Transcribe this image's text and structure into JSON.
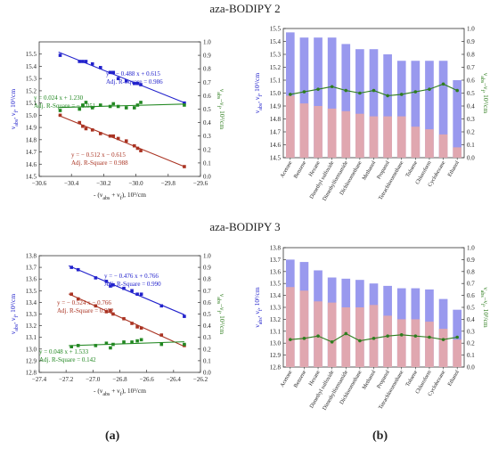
{
  "titles": [
    "aza-BODIPY 2",
    "aza-BODIPY 3"
  ],
  "panel_labels": [
    "(a)",
    "(b)"
  ],
  "chart_data": [
    {
      "id": "a2",
      "type": "scatter",
      "xlabel": "- (ν_abs + ν_f), 10³/cm",
      "ylabel": "ν_abs, ν_f, 10³/cm",
      "y2label": "ν_abs–ν_f, 10³/cm",
      "xlim": [
        -30.6,
        -29.6
      ],
      "xticks": [
        -30.6,
        -30.4,
        -30.2,
        -30.0,
        -29.8,
        -29.6
      ],
      "ylim": [
        14.5,
        15.6
      ],
      "yticks": [
        14.5,
        14.6,
        14.7,
        14.8,
        14.9,
        15.0,
        15.1,
        15.2,
        15.3,
        15.4,
        15.5
      ],
      "y2lim": [
        0.0,
        1.0
      ],
      "y2ticks": [
        0.0,
        0.1,
        0.2,
        0.3,
        0.4,
        0.5,
        0.6,
        0.7,
        0.8,
        0.9,
        1.0
      ],
      "series": [
        {
          "color": "#2222cc",
          "axis": "left",
          "slope": -0.488,
          "intercept": 0.615,
          "line": [
            -30.48,
            -29.7
          ],
          "x": [
            -30.47,
            -30.35,
            -30.33,
            -30.31,
            -30.27,
            -30.22,
            -30.16,
            -30.14,
            -30.11,
            -30.06,
            -30.01,
            -29.99,
            -29.97,
            -29.7
          ],
          "y": [
            15.49,
            15.44,
            15.44,
            15.44,
            15.42,
            15.39,
            15.35,
            15.35,
            15.3,
            15.28,
            15.26,
            15.26,
            15.25,
            15.1
          ],
          "eq": "y = − 0.488 x + 0.615",
          "r2": "Adj. R-Square = 0.986"
        },
        {
          "color": "#228822",
          "axis": "right",
          "slope": 0.024,
          "intercept": 1.23,
          "line": [
            -30.48,
            -29.7
          ],
          "x": [
            -30.47,
            -30.35,
            -30.33,
            -30.31,
            -30.27,
            -30.22,
            -30.16,
            -30.14,
            -30.11,
            -30.06,
            -30.01,
            -29.99,
            -29.97,
            -29.7
          ],
          "y": [
            0.49,
            0.5,
            0.53,
            0.55,
            0.51,
            0.53,
            0.52,
            0.54,
            0.52,
            0.51,
            0.51,
            0.53,
            0.55,
            0.53
          ],
          "eq": "y = 0.024 x + 1.230",
          "r2": "Adj. R-Square = − 0.051"
        },
        {
          "color": "#aa3322",
          "axis": "left",
          "slope": -0.512,
          "intercept": -0.615,
          "line": [
            -30.48,
            -29.7
          ],
          "x": [
            -30.47,
            -30.35,
            -30.33,
            -30.31,
            -30.27,
            -30.22,
            -30.16,
            -30.14,
            -30.11,
            -30.06,
            -30.01,
            -29.99,
            -29.97,
            -29.7
          ],
          "y": [
            15.0,
            14.94,
            14.91,
            14.89,
            14.88,
            14.85,
            14.83,
            14.83,
            14.81,
            14.79,
            14.75,
            14.73,
            14.71,
            14.58
          ],
          "eq": "y = − 0.512 x − 0.615",
          "r2": "Adj. R-Square = 0.988"
        }
      ]
    },
    {
      "id": "a3",
      "type": "scatter",
      "xlabel": "- (ν_abs + ν_f), 10³/cm",
      "ylabel": "ν_abs, ν_f, 10³/cm",
      "y2label": "ν_abs–ν_f, 10³/cm",
      "xlim": [
        -27.4,
        -26.2
      ],
      "xticks": [
        -27.4,
        -27.2,
        -27.0,
        -26.8,
        -26.6,
        -26.4,
        -26.2
      ],
      "ylim": [
        12.8,
        13.8
      ],
      "yticks": [
        12.8,
        12.9,
        13.0,
        13.1,
        13.2,
        13.3,
        13.4,
        13.5,
        13.6,
        13.7,
        13.8
      ],
      "y2lim": [
        0.0,
        1.0
      ],
      "y2ticks": [
        0.0,
        0.1,
        0.2,
        0.3,
        0.4,
        0.5,
        0.6,
        0.7,
        0.8,
        0.9,
        1.0
      ],
      "series": [
        {
          "color": "#2222cc",
          "axis": "left",
          "slope": -0.476,
          "intercept": 0.766,
          "line": [
            -27.18,
            -26.32
          ],
          "x": [
            -27.16,
            -27.11,
            -26.98,
            -26.9,
            -26.87,
            -26.85,
            -26.77,
            -26.71,
            -26.67,
            -26.64,
            -26.49,
            -26.32
          ],
          "y": [
            13.7,
            13.68,
            13.61,
            13.58,
            13.54,
            13.55,
            13.52,
            13.5,
            13.47,
            13.47,
            13.37,
            13.28
          ],
          "eq": "y = − 0.476 x + 0.766",
          "r2": "Adj. R-Square = 0.990"
        },
        {
          "color": "#aa3322",
          "axis": "left",
          "slope": -0.524,
          "intercept": -0.766,
          "line": [
            -27.18,
            -26.32
          ],
          "x": [
            -27.16,
            -27.11,
            -26.98,
            -26.9,
            -26.87,
            -26.85,
            -26.77,
            -26.71,
            -26.67,
            -26.64,
            -26.49,
            -26.32
          ],
          "y": [
            13.47,
            13.43,
            13.37,
            13.32,
            13.33,
            13.3,
            13.26,
            13.22,
            13.19,
            13.18,
            13.12,
            13.03
          ],
          "eq": "y = − 0.524 x − 0.766",
          "r2": "Adj. R-Square = 0.992"
        },
        {
          "color": "#228822",
          "axis": "right",
          "slope": 0.048,
          "intercept": 1.533,
          "line": [
            -27.18,
            -26.32
          ],
          "x": [
            -27.16,
            -27.11,
            -26.98,
            -26.9,
            -26.87,
            -26.85,
            -26.77,
            -26.71,
            -26.67,
            -26.64,
            -26.49,
            -26.32
          ],
          "y": [
            0.22,
            0.23,
            0.23,
            0.25,
            0.21,
            0.24,
            0.26,
            0.26,
            0.27,
            0.28,
            0.24,
            0.24
          ],
          "eq": "y = 0.048 x + 1.533",
          "r2": "Adj. R-Square = 0.142"
        }
      ]
    },
    {
      "id": "b2",
      "type": "bar",
      "ylabel": "ν_abs, ν_f, 10³/cm",
      "y2label": "ν_abs–ν_f, 10³/cm",
      "categories": [
        "Acetone",
        "Benzene",
        "Hexane",
        "Dimethyl sulfoxide",
        "Dimethylformamide",
        "Dichloromethane",
        "Methanol",
        "Propanol",
        "Tetrachloromethane",
        "Toluene",
        "Chloroform",
        "Cyclohexane",
        "Ethanol"
      ],
      "ylim": [
        14.5,
        15.5
      ],
      "yticks": [
        14.5,
        14.6,
        14.7,
        14.8,
        14.9,
        15.0,
        15.1,
        15.2,
        15.3,
        15.4,
        15.5
      ],
      "y2lim": [
        0.0,
        1.0
      ],
      "y2ticks": [
        0.0,
        0.1,
        0.2,
        0.3,
        0.4,
        0.5,
        0.6,
        0.7,
        0.8,
        0.9,
        1.0
      ],
      "abs": [
        15.47,
        15.43,
        15.43,
        15.43,
        15.38,
        15.34,
        15.34,
        15.3,
        15.25,
        15.25,
        15.25,
        15.25,
        15.1
      ],
      "fl": [
        14.98,
        14.92,
        14.9,
        14.88,
        14.86,
        14.84,
        14.82,
        14.82,
        14.82,
        14.74,
        14.72,
        14.68,
        14.58
      ],
      "diff": [
        0.49,
        0.51,
        0.53,
        0.55,
        0.52,
        0.5,
        0.52,
        0.48,
        0.49,
        0.51,
        0.53,
        0.57,
        0.52
      ],
      "abs_color": "#9999ee",
      "fl_color": "#e8a8a8",
      "diff_color": "#2e7d1e"
    },
    {
      "id": "b3",
      "type": "bar",
      "ylabel": "ν_abs, ν_f, 10³/cm",
      "y2label": "ν_abs–ν_f, 10³/cm",
      "categories": [
        "Acetone",
        "Benzene",
        "Hexane",
        "Dimethyl sulfoxide",
        "Dimethylformamide",
        "Dichloromethane",
        "Methanol",
        "Propanol",
        "Tetrachloromethane",
        "Toluene",
        "Chloroform",
        "Cyclohexane",
        "Ethanol"
      ],
      "ylim": [
        12.8,
        13.8
      ],
      "yticks": [
        12.8,
        12.9,
        13.0,
        13.1,
        13.2,
        13.3,
        13.4,
        13.5,
        13.6,
        13.7,
        13.8
      ],
      "y2lim": [
        0.0,
        1.0
      ],
      "y2ticks": [
        0.0,
        0.1,
        0.2,
        0.3,
        0.4,
        0.5,
        0.6,
        0.7,
        0.8,
        0.9,
        1.0
      ],
      "abs": [
        13.7,
        13.68,
        13.61,
        13.55,
        13.54,
        13.53,
        13.5,
        13.48,
        13.46,
        13.46,
        13.45,
        13.37,
        13.28
      ],
      "fl": [
        13.47,
        13.44,
        13.35,
        13.34,
        13.3,
        13.3,
        13.32,
        13.23,
        13.2,
        13.2,
        13.18,
        13.12,
        13.03
      ],
      "diff": [
        0.23,
        0.24,
        0.26,
        0.21,
        0.28,
        0.22,
        0.24,
        0.26,
        0.27,
        0.26,
        0.25,
        0.23,
        0.25
      ],
      "abs_color": "#9999ee",
      "fl_color": "#e8a8a8",
      "diff_color": "#2e7d1e"
    }
  ]
}
